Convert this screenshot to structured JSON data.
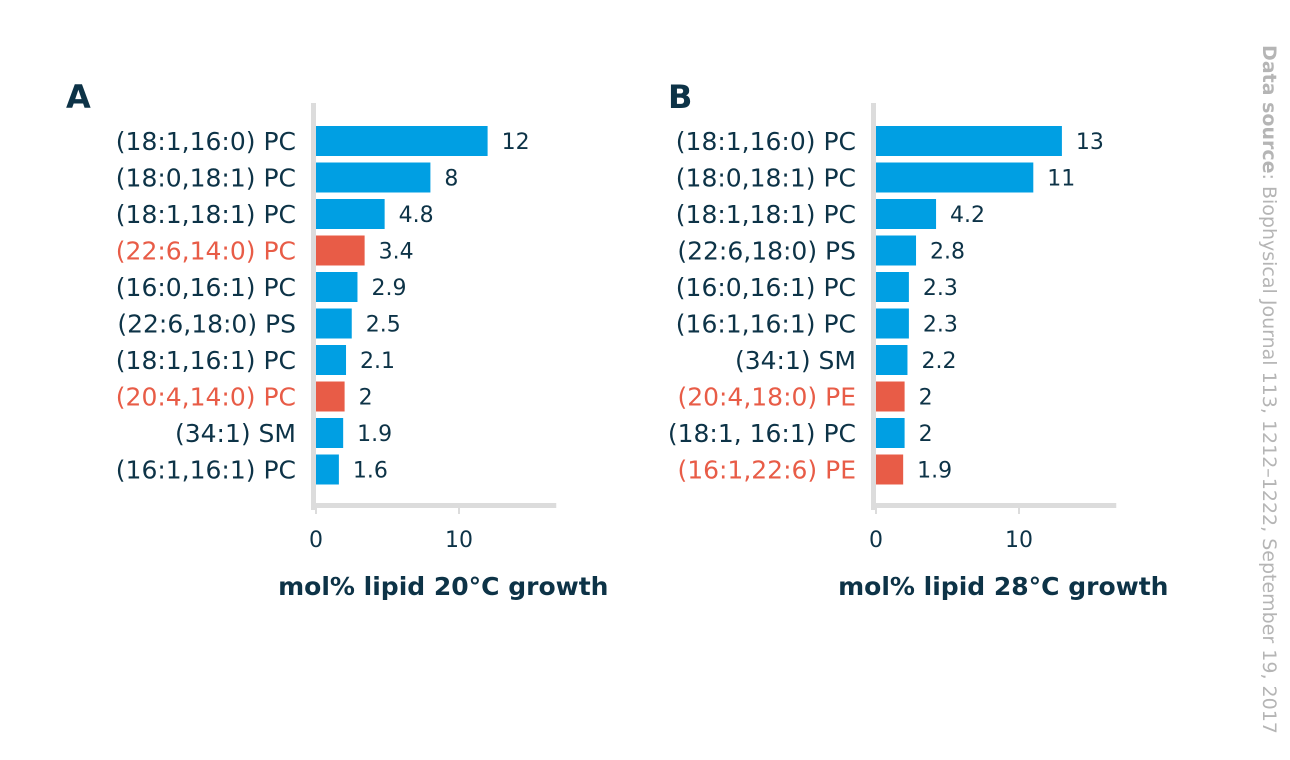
{
  "chart_data": [
    {
      "type": "bar",
      "orientation": "horizontal",
      "panel": "A",
      "xlabel": "mol% lipid 20°C growth",
      "xticks": [
        0,
        10
      ],
      "xlim": [
        0,
        16.8
      ],
      "categories": [
        "(18:1,16:0)  PC",
        "(18:0,18:1)  PC",
        "(18:1,18:1)  PC",
        "(22:6,14:0)  PC",
        "(16:0,16:1)  PC",
        "(22:6,18:0)  PS",
        "(18:1,16:1)  PC",
        "(20:4,14:0)  PC",
        "(34:1)  SM",
        "(16:1,16:1)  PC"
      ],
      "values": [
        12,
        8,
        4.8,
        3.4,
        2.9,
        2.5,
        2.1,
        2,
        1.9,
        1.6
      ],
      "value_labels": [
        "12",
        "8",
        "4.8",
        "3.4",
        "2.9",
        "2.5",
        "2.1",
        "2",
        "1.9",
        "1.6"
      ],
      "highlight": [
        false,
        false,
        false,
        true,
        false,
        false,
        false,
        true,
        false,
        false
      ]
    },
    {
      "type": "bar",
      "orientation": "horizontal",
      "panel": "B",
      "xlabel": "mol% lipid 28°C growth",
      "xticks": [
        0,
        10
      ],
      "xlim": [
        0,
        16.8
      ],
      "categories": [
        "(18:1,16:0) PC",
        "(18:0,18:1) PC",
        "(18:1,18:1) PC",
        "(22:6,18:0) PS",
        "(16:0,16:1) PC",
        "(16:1,16:1) PC",
        "(34:1) SM",
        "(20:4,18:0) PE",
        "(18:1, 16:1) PC",
        "(16:1,22:6) PE"
      ],
      "values": [
        13,
        11,
        4.2,
        2.8,
        2.3,
        2.3,
        2.2,
        2,
        2,
        1.9
      ],
      "value_labels": [
        "13",
        "11",
        "4.2",
        "2.8",
        "2.3",
        "2.3",
        "2.2",
        "2",
        "2",
        "1.9"
      ],
      "highlight": [
        false,
        false,
        false,
        false,
        false,
        false,
        false,
        true,
        false,
        true
      ]
    }
  ],
  "colors": {
    "bar": "#009fe3",
    "highlight": "#e85c47",
    "text": "#0d3347",
    "axis": "#dcdcdc",
    "source": "#b5b5b5"
  },
  "source": {
    "label": "Data source",
    "text": ": Biophysical Journal 113, 1212–1222, September 19, 2017"
  }
}
